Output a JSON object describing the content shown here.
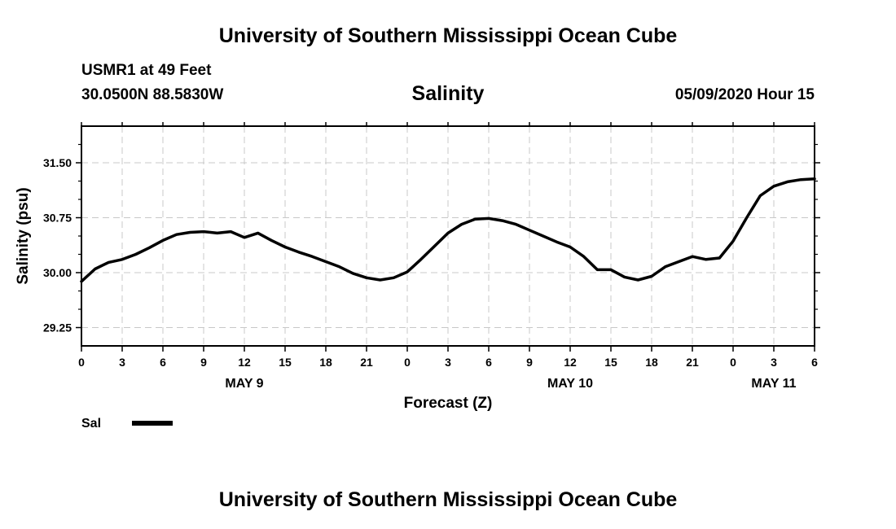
{
  "header": {
    "title_top": "University of Southern Mississippi Ocean Cube",
    "station": "USMR1 at 49 Feet",
    "coords": "30.0500N 88.5830W",
    "parameter": "Salinity",
    "datetime": "05/09/2020 Hour 15"
  },
  "footer": {
    "title_bottom": "University of Southern Mississippi Ocean Cube"
  },
  "chart_data": {
    "type": "line",
    "title": "Salinity",
    "xlabel": "Forecast (Z)",
    "ylabel": "Salinity (psu)",
    "xlim": [
      0,
      54
    ],
    "ylim": [
      29.0,
      32.0
    ],
    "grid": true,
    "x_tick_labels": [
      "0",
      "3",
      "6",
      "9",
      "12",
      "15",
      "18",
      "21",
      "0",
      "3",
      "6",
      "9",
      "12",
      "15",
      "18",
      "21",
      "0",
      "3",
      "6"
    ],
    "y_ticks": [
      29.25,
      30.0,
      30.75,
      31.5
    ],
    "y_tick_labels": [
      "29.25",
      "30.00",
      "30.75",
      "31.50"
    ],
    "day_labels": [
      {
        "hour": 12,
        "label": "MAY 9"
      },
      {
        "hour": 36,
        "label": "MAY 10"
      },
      {
        "hour": 51,
        "label": "MAY 11"
      }
    ],
    "legend": {
      "position": "bottom-left",
      "label": "Sal"
    },
    "series": [
      {
        "name": "Sal",
        "color": "#000000",
        "x": [
          0,
          1,
          2,
          3,
          4,
          5,
          6,
          7,
          8,
          9,
          10,
          11,
          12,
          13,
          14,
          15,
          16,
          17,
          18,
          19,
          20,
          21,
          22,
          23,
          24,
          25,
          26,
          27,
          28,
          29,
          30,
          31,
          32,
          33,
          34,
          35,
          36,
          37,
          38,
          39,
          40,
          41,
          42,
          43,
          44,
          45,
          46,
          47,
          48,
          49,
          50,
          51,
          52,
          53,
          54
        ],
        "values": [
          29.88,
          30.05,
          30.14,
          30.18,
          30.25,
          30.34,
          30.44,
          30.52,
          30.55,
          30.56,
          30.54,
          30.56,
          30.48,
          30.54,
          30.44,
          30.35,
          30.28,
          30.22,
          30.15,
          30.08,
          29.99,
          29.93,
          29.9,
          29.93,
          30.01,
          30.18,
          30.36,
          30.54,
          30.66,
          30.73,
          30.74,
          30.71,
          30.66,
          30.58,
          30.5,
          30.42,
          30.35,
          30.22,
          30.04,
          30.04,
          29.94,
          29.9,
          29.95,
          30.08,
          30.15,
          30.22,
          30.18,
          30.2,
          30.43,
          30.75,
          31.05,
          31.18,
          31.24,
          31.27,
          31.28
        ]
      }
    ]
  }
}
